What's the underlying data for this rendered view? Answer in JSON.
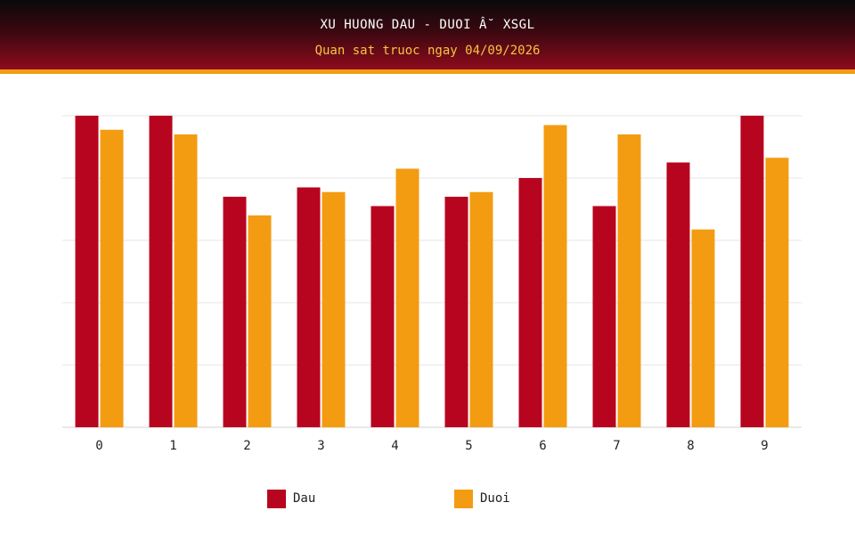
{
  "header": {
    "title": "XU HUONG DAU - DUOI Â˘ XSGL",
    "subtitle": "Quan sat truoc ngay 04/09/2026"
  },
  "colors": {
    "dau": "#b8051f",
    "duoi": "#f39c12",
    "grid": "#e6e6e6"
  },
  "chart_data": {
    "type": "bar",
    "title": "XU HUONG DAU - DUOI Â˘ XSGL",
    "subtitle": "Quan sat truoc ngay 04/09/2026",
    "categories": [
      "0",
      "1",
      "2",
      "3",
      "4",
      "5",
      "6",
      "7",
      "8",
      "9"
    ],
    "series": [
      {
        "name": "Dau",
        "values": [
          10.0,
          10.0,
          7.4,
          7.7,
          7.1,
          7.4,
          8.0,
          7.1,
          8.5,
          10.0
        ]
      },
      {
        "name": "Duoi",
        "values": [
          9.55,
          9.4,
          6.8,
          7.55,
          8.3,
          7.55,
          9.7,
          9.4,
          6.35,
          8.65
        ]
      }
    ],
    "ylim": [
      0,
      10
    ],
    "grid": true,
    "y_tick_labels_shown": false,
    "legend": "bottom-center"
  }
}
